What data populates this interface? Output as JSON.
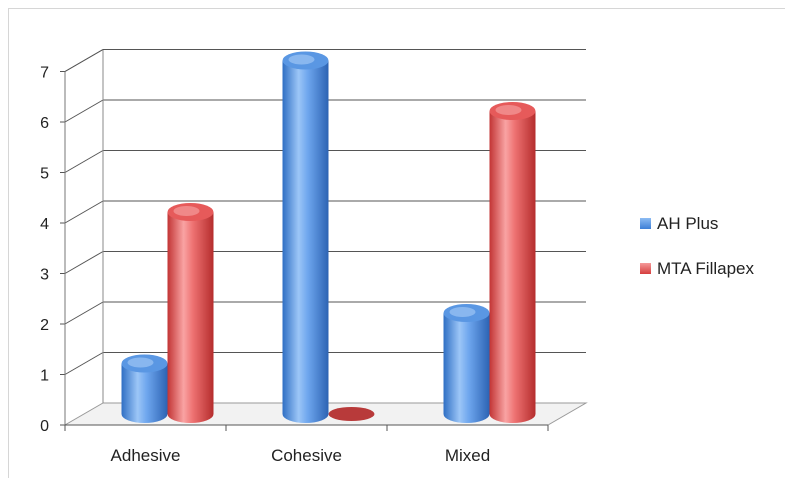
{
  "chart_data": {
    "type": "bar",
    "style": "3d-cylinder",
    "categories": [
      "Adhesive",
      "Cohesive",
      "Mixed"
    ],
    "series": [
      {
        "name": "AH Plus",
        "values": [
          1,
          7,
          2
        ],
        "color": "#4d8fe0"
      },
      {
        "name": "MTA Fillapex",
        "values": [
          4,
          0,
          6
        ],
        "color": "#e04a4a"
      }
    ],
    "y_ticks": [
      "0",
      "1",
      "2",
      "3",
      "4",
      "5",
      "6",
      "7"
    ],
    "ylim": [
      0,
      7
    ],
    "grid": true,
    "legend_position": "right"
  }
}
